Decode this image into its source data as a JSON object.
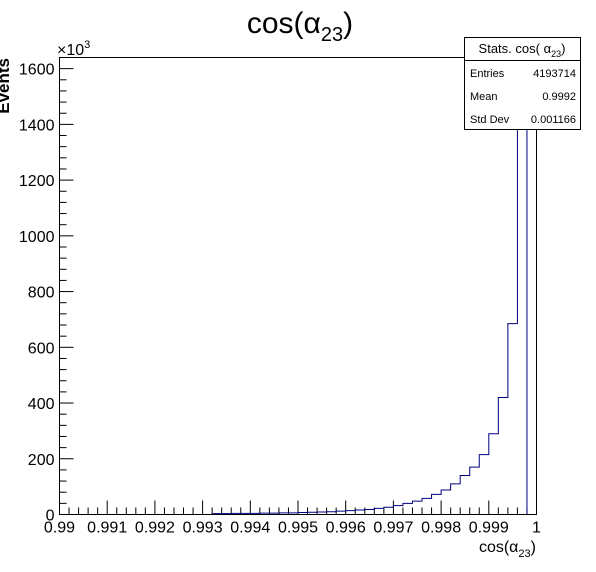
{
  "chart_data": {
    "type": "bar",
    "title_main": "cos(α",
    "title_sub": "23",
    "title_close": ")",
    "xlabel_main": "cos(α",
    "xlabel_sub": "23",
    "xlabel_close": ")",
    "ylabel": "Events",
    "y_multiplier_base": "×10",
    "y_multiplier_exp": "3",
    "xlim": [
      0.99,
      1.0
    ],
    "ylim": [
      0,
      1640
    ],
    "x_ticks": [
      0.99,
      0.991,
      0.992,
      0.993,
      0.994,
      0.995,
      0.996,
      0.997,
      0.998,
      0.999,
      1.0
    ],
    "x_tick_labels": [
      "0.99",
      "0.991",
      "0.992",
      "0.993",
      "0.994",
      "0.995",
      "0.996",
      "0.997",
      "0.998",
      "0.999",
      "1"
    ],
    "y_ticks": [
      0,
      200,
      400,
      600,
      800,
      1000,
      1200,
      1400,
      1600
    ],
    "y_tick_labels": [
      "0",
      "200",
      "400",
      "600",
      "800",
      "1000",
      "1200",
      "1400",
      "1600"
    ],
    "bin_width": 0.0002,
    "bin_edges_start": 0.9932,
    "values": [
      3,
      3,
      4,
      4,
      4,
      5,
      5,
      6,
      6,
      7,
      8,
      9,
      10,
      12,
      14,
      16,
      18,
      22,
      26,
      32,
      40,
      48,
      58,
      72,
      88,
      110,
      140,
      170,
      215,
      290,
      420,
      685,
      1640
    ],
    "line_color": "#000080",
    "stats": {
      "title_main": "Stats. cos( α",
      "title_sub": "23",
      "title_close": ")",
      "rows": [
        {
          "label": "Entries",
          "value": "4193714"
        },
        {
          "label": "Mean",
          "value": "0.9992"
        },
        {
          "label": "Std Dev",
          "value": "0.001166"
        }
      ]
    }
  }
}
